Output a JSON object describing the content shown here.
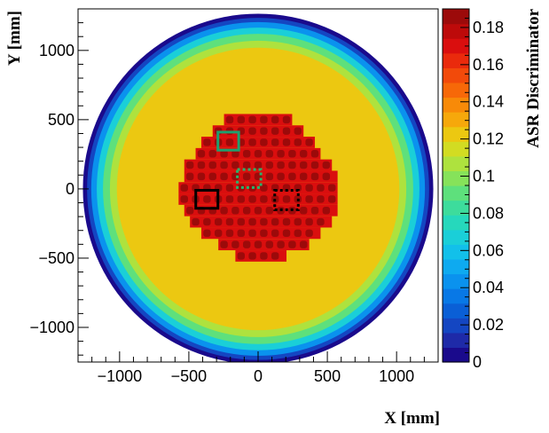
{
  "chart_data": {
    "type": "heatmap",
    "title": "",
    "xlabel": "X [mm]",
    "ylabel": "Y [mm]",
    "zlabel": "ASR Discriminator",
    "xlim": [
      -1300,
      1300
    ],
    "ylim": [
      -1250,
      1300
    ],
    "zlim": [
      0,
      0.19
    ],
    "x_ticks": [
      -1000,
      -500,
      0,
      500,
      1000
    ],
    "x_tick_labels": [
      "−1000",
      "−500",
      "0",
      "500",
      "1000"
    ],
    "y_ticks": [
      -1000,
      -500,
      0,
      500,
      1000
    ],
    "y_tick_labels": [
      "−1000",
      "−500",
      "0",
      "500",
      "1000"
    ],
    "z_ticks": [
      0,
      0.02,
      0.04,
      0.06,
      0.08,
      0.1,
      0.12,
      0.14,
      0.16,
      0.18
    ],
    "z_tick_labels": [
      "0",
      "0.02",
      "0.04",
      "0.06",
      "0.08",
      "0.1",
      "0.12",
      "0.14",
      "0.16",
      "0.18"
    ],
    "palette": [
      "#1a0a8c",
      "#1e2aa8",
      "#1446c2",
      "#0a5fd6",
      "#0878e6",
      "#0a92ee",
      "#0eaaf0",
      "#12c0ea",
      "#1acfd8",
      "#26d8bc",
      "#3ddc9c",
      "#5ee07c",
      "#86e25a",
      "#aee23e",
      "#d2dc22",
      "#ecc811",
      "#f6a80b",
      "#f88a08",
      "#f76808",
      "#f24a0a",
      "#ea2a0c",
      "#da0e0e",
      "#bd0a0a",
      "#9c0a0a"
    ],
    "disk": {
      "center": [
        0,
        0
      ],
      "radius_mm": 1265,
      "radial_profile": [
        {
          "r": 0,
          "value": 0.125
        },
        {
          "r": 1020,
          "value": 0.125
        },
        {
          "r": 1070,
          "value": 0.108
        },
        {
          "r": 1120,
          "value": 0.088
        },
        {
          "r": 1165,
          "value": 0.066
        },
        {
          "r": 1205,
          "value": 0.044
        },
        {
          "r": 1235,
          "value": 0.022
        },
        {
          "r": 1265,
          "value": 0.004
        }
      ]
    },
    "central_region": {
      "value_background": 0.17,
      "value_cells": 0.185,
      "cell_pitch_mm": 82,
      "cell_size_mm": 54,
      "rows": [
        {
          "y": 500,
          "x_from": -205,
          "x_to": 205
        },
        {
          "y": 418,
          "x_from": -287,
          "x_to": 287
        },
        {
          "y": 336,
          "x_from": -369,
          "x_to": 369
        },
        {
          "y": 254,
          "x_from": -410,
          "x_to": 410
        },
        {
          "y": 172,
          "x_from": -492,
          "x_to": 492
        },
        {
          "y": 90,
          "x_from": -492,
          "x_to": 533
        },
        {
          "y": 8,
          "x_from": -533,
          "x_to": 533
        },
        {
          "y": -74,
          "x_from": -533,
          "x_to": 533
        },
        {
          "y": -156,
          "x_from": -492,
          "x_to": 533
        },
        {
          "y": -238,
          "x_from": -451,
          "x_to": 492
        },
        {
          "y": -320,
          "x_from": -369,
          "x_to": 410
        },
        {
          "y": -402,
          "x_from": -246,
          "x_to": 328
        },
        {
          "y": -484,
          "x_from": -123,
          "x_to": 164
        }
      ]
    },
    "markers": [
      {
        "label": "solid-green",
        "x0": -290,
        "x1": -140,
        "y0": 280,
        "y1": 410,
        "color": "#1fa06e",
        "style": "solid"
      },
      {
        "label": "dotted-green",
        "x0": -150,
        "x1": 20,
        "y0": 10,
        "y1": 140,
        "color": "#28b46c",
        "style": "dotted"
      },
      {
        "label": "solid-black",
        "x0": -450,
        "x1": -290,
        "y0": -140,
        "y1": -10,
        "color": "#000000",
        "style": "solid"
      },
      {
        "label": "dotted-black",
        "x0": 120,
        "x1": 290,
        "y0": -150,
        "y1": -10,
        "color": "#000000",
        "style": "dotted"
      }
    ],
    "legend": "colorbar-right"
  }
}
